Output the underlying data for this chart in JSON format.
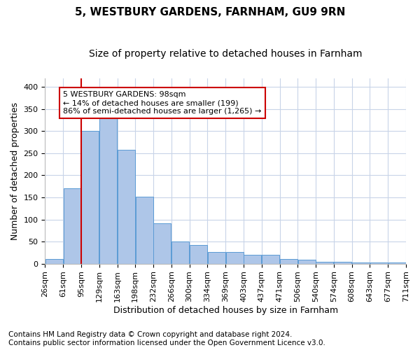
{
  "title1": "5, WESTBURY GARDENS, FARNHAM, GU9 9RN",
  "title2": "Size of property relative to detached houses in Farnham",
  "xlabel": "Distribution of detached houses by size in Farnham",
  "ylabel": "Number of detached properties",
  "footnote1": "Contains HM Land Registry data © Crown copyright and database right 2024.",
  "footnote2": "Contains public sector information licensed under the Open Government Licence v3.0.",
  "bin_labels": [
    "26sqm",
    "61sqm",
    "95sqm",
    "129sqm",
    "163sqm",
    "198sqm",
    "232sqm",
    "266sqm",
    "300sqm",
    "334sqm",
    "369sqm",
    "403sqm",
    "437sqm",
    "471sqm",
    "506sqm",
    "540sqm",
    "574sqm",
    "608sqm",
    "643sqm",
    "677sqm",
    "711sqm"
  ],
  "bar_heights": [
    10,
    170,
    300,
    330,
    257,
    152,
    91,
    50,
    43,
    27,
    27,
    20,
    20,
    10,
    9,
    5,
    4,
    2,
    2,
    3
  ],
  "bar_color": "#aec6e8",
  "bar_edge_color": "#5b9bd5",
  "annotation_line1": "5 WESTBURY GARDENS: 98sqm",
  "annotation_line2": "← 14% of detached houses are smaller (199)",
  "annotation_line3": "86% of semi-detached houses are larger (1,265) →",
  "annotation_box_color": "#ffffff",
  "annotation_box_edge": "#cc0000",
  "vline_color": "#cc0000",
  "vline_x_index": 2,
  "ylim": [
    0,
    420
  ],
  "yticks": [
    0,
    50,
    100,
    150,
    200,
    250,
    300,
    350,
    400
  ],
  "background_color": "#ffffff",
  "grid_color": "#c8d4e8",
  "title1_fontsize": 11,
  "title2_fontsize": 10,
  "xlabel_fontsize": 9,
  "ylabel_fontsize": 9,
  "tick_fontsize": 8,
  "annotation_fontsize": 8,
  "footnote_fontsize": 7.5
}
